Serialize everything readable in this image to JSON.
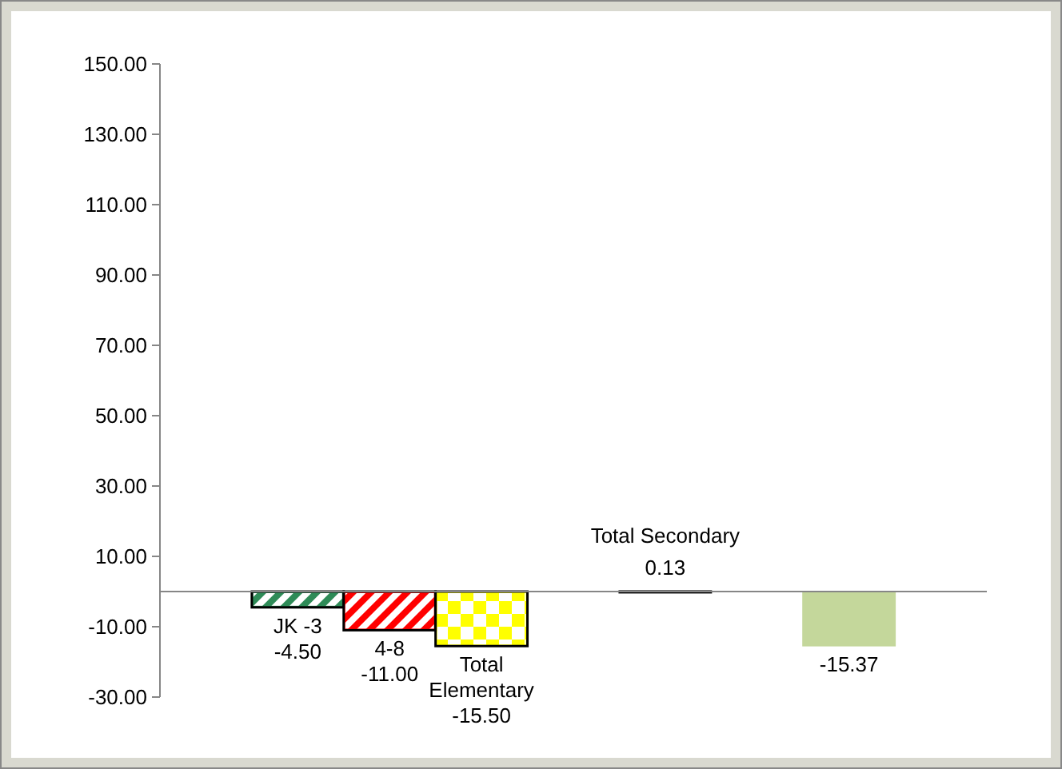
{
  "chart_data": {
    "type": "bar",
    "categories": [
      null,
      "JK -3",
      "4-8",
      "Total Elementary",
      null,
      "Total Secondary",
      null,
      null,
      null
    ],
    "values": [
      null,
      -4.5,
      -11.0,
      -15.5,
      null,
      0.13,
      null,
      -15.37,
      null
    ],
    "colors": [
      null,
      "#2e8b57",
      "#ff0000",
      "#ffff00",
      null,
      "#000000",
      null,
      "#c4d79b",
      null
    ],
    "value_labels": [
      null,
      "-4.50",
      "-11.00",
      "-15.50",
      null,
      "0.13",
      null,
      "-15.37",
      null
    ],
    "ylim": [
      -30,
      150
    ],
    "yticks": [
      {
        "value": -30,
        "label": "-30.00"
      },
      {
        "value": -10,
        "label": "-10.00"
      },
      {
        "value": 10,
        "label": "10.00"
      },
      {
        "value": 30,
        "label": "30.00"
      },
      {
        "value": 50,
        "label": "50.00"
      },
      {
        "value": 70,
        "label": "70.00"
      },
      {
        "value": 90,
        "label": "90.00"
      },
      {
        "value": 110,
        "label": "110.00"
      },
      {
        "value": 130,
        "label": "130.00"
      },
      {
        "value": 150,
        "label": "150.00"
      }
    ],
    "grid": false,
    "legend": false
  }
}
